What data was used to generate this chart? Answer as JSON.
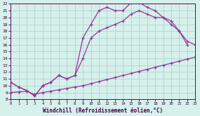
{
  "xlabel": "Windchill (Refroidissement éolien,°C)",
  "bg_color": "#d6f0ec",
  "grid_color": "#aed4ce",
  "line_color": "#993399",
  "xmin": 0,
  "xmax": 23,
  "ymin": 8,
  "ymax": 22,
  "line1_x": [
    0,
    1,
    2,
    3,
    4,
    5,
    6,
    7,
    8,
    9,
    10,
    11,
    12,
    13,
    14,
    15,
    16,
    17,
    18,
    19,
    20,
    21,
    22
  ],
  "line1_y": [
    10.5,
    9.8,
    9.3,
    8.5,
    10.0,
    10.5,
    11.5,
    11.0,
    11.5,
    17.0,
    19.0,
    21.0,
    21.5,
    21.0,
    21.0,
    22.2,
    22.2,
    21.5,
    21.0,
    20.0,
    19.5,
    18.0,
    16.0
  ],
  "line2_x": [
    0,
    1,
    2,
    3,
    4,
    5,
    6,
    7,
    8,
    9,
    10,
    11,
    12,
    13,
    14,
    15,
    16,
    17,
    18,
    19,
    20,
    21,
    22,
    23
  ],
  "line2_y": [
    10.5,
    9.8,
    9.3,
    8.5,
    10.0,
    10.5,
    11.5,
    11.0,
    11.5,
    14.0,
    17.0,
    18.0,
    18.5,
    19.0,
    19.5,
    20.5,
    21.0,
    20.5,
    20.0,
    20.0,
    19.0,
    18.0,
    16.5,
    16.0
  ],
  "line3_x": [
    0,
    1,
    2,
    3,
    4,
    5,
    6,
    7,
    8,
    9,
    10,
    11,
    12,
    13,
    14,
    15,
    16,
    17,
    18,
    19,
    20,
    21,
    22,
    23
  ],
  "line3_y": [
    9.0,
    9.1,
    9.2,
    8.7,
    9.0,
    9.2,
    9.4,
    9.6,
    9.8,
    10.0,
    10.3,
    10.6,
    10.9,
    11.2,
    11.5,
    11.8,
    12.1,
    12.4,
    12.7,
    13.0,
    13.3,
    13.6,
    13.9,
    14.2
  ]
}
